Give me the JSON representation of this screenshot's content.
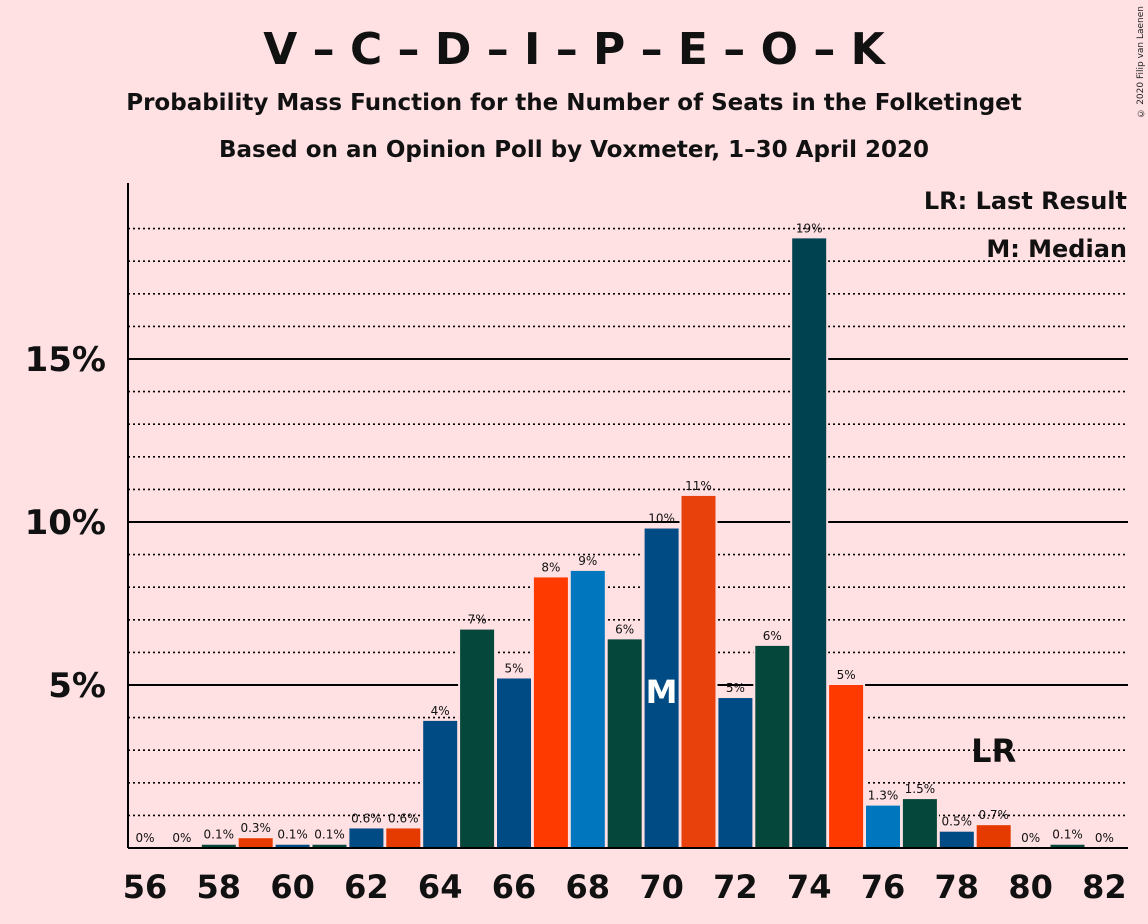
{
  "title": "V – C – D – I – P – E – O – K",
  "subtitle1": "Probability Mass Function for the Number of Seats in the Folketinget",
  "subtitle2": "Based on an Opinion Poll by Voxmeter, 1–30 April 2020",
  "copyright": "© 2020 Filip van Laenen",
  "legend": {
    "last_result": "LR: Last Result",
    "median": "M: Median"
  },
  "markers": {
    "median_label": "M",
    "median_seats": 70,
    "last_result_label": "LR",
    "last_result_seats": 79
  },
  "chart_data": {
    "type": "bar",
    "x": [
      56,
      57,
      58,
      59,
      60,
      61,
      62,
      63,
      64,
      65,
      66,
      67,
      68,
      69,
      70,
      71,
      72,
      73,
      74,
      75,
      76,
      77,
      78,
      79,
      80,
      81,
      82
    ],
    "values": [
      0,
      0,
      0.1,
      0.3,
      0.1,
      0.1,
      0.6,
      0.6,
      3.9,
      6.7,
      5.2,
      8.3,
      8.5,
      6.4,
      9.8,
      10.8,
      4.6,
      6.2,
      18.7,
      5.0,
      1.3,
      1.5,
      0.5,
      0.7,
      0,
      0.1,
      0
    ],
    "data_labels": [
      "0%",
      "0%",
      "0.1%",
      "0.3%",
      "0.1%",
      "0.1%",
      "0.6%",
      "0.6%",
      "4%",
      "7%",
      "5%",
      "8%",
      "9%",
      "6%",
      "10%",
      "11%",
      "5%",
      "6%",
      "19%",
      "5%",
      "1.3%",
      "1.5%",
      "0.5%",
      "0.7%",
      "0%",
      "0.1%",
      "0%"
    ],
    "colors": [
      "#e53a00",
      "#004b84",
      "#05473a",
      "#e53a00",
      "#004b84",
      "#05473a",
      "#004b84",
      "#e53a00",
      "#004b84",
      "#05473a",
      "#004b84",
      "#ff3a00",
      "#0076bf",
      "#05473a",
      "#004b84",
      "#e8410c",
      "#004b84",
      "#05473a",
      "#00424f",
      "#ff3a00",
      "#0076bf",
      "#05473a",
      "#004b84",
      "#e53a00",
      "#004b84",
      "#05473a",
      "#004b84"
    ],
    "x_tick_labels": [
      "56",
      "58",
      "60",
      "62",
      "64",
      "66",
      "68",
      "70",
      "72",
      "74",
      "76",
      "78",
      "80",
      "82"
    ],
    "y_tick_labels": [
      "5%",
      "10%",
      "15%"
    ],
    "ylim": [
      0,
      20.5
    ],
    "major_grid": [
      5,
      10,
      15
    ],
    "minor_grid_step": 1
  }
}
